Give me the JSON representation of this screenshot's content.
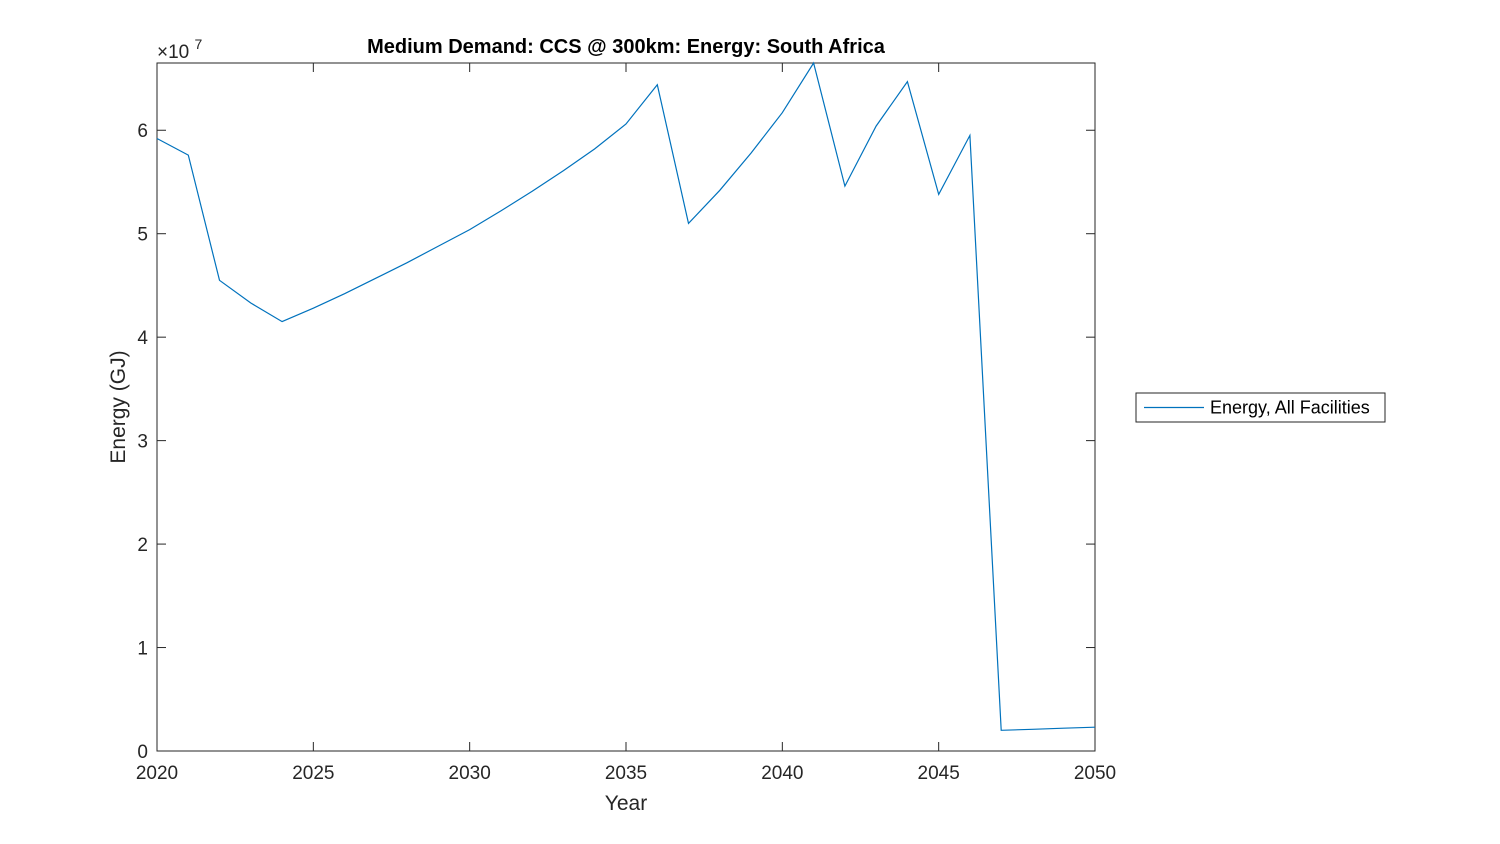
{
  "chart_data": {
    "type": "line",
    "title": "Medium Demand: CCS @ 300km: Energy: South Africa",
    "xlabel": "Year",
    "ylabel": "Energy (GJ)",
    "y_exponent_label": "×10",
    "y_exponent_power": "7",
    "xlim": [
      2020,
      2050
    ],
    "ylim": [
      0,
      6.65
    ],
    "x_ticks": [
      2020,
      2025,
      2030,
      2035,
      2040,
      2045,
      2050
    ],
    "x_tick_labels": [
      "2020",
      "2025",
      "2030",
      "2035",
      "2040",
      "2045",
      "2050"
    ],
    "y_ticks": [
      0,
      1,
      2,
      3,
      4,
      5,
      6
    ],
    "y_tick_labels": [
      "0",
      "1",
      "2",
      "3",
      "4",
      "5",
      "6"
    ],
    "grid": false,
    "legend_position": "outside-right",
    "series": [
      {
        "name": "Energy, All Facilities",
        "color": "#0072BD",
        "x": [
          2020,
          2021,
          2022,
          2023,
          2024,
          2025,
          2026,
          2027,
          2028,
          2029,
          2030,
          2031,
          2032,
          2033,
          2034,
          2035,
          2036,
          2037,
          2038,
          2039,
          2040,
          2041,
          2042,
          2043,
          2044,
          2045,
          2046,
          2047,
          2048,
          2049,
          2050
        ],
        "values": [
          5.92,
          5.76,
          4.55,
          4.33,
          4.15,
          4.28,
          4.42,
          4.57,
          4.72,
          4.88,
          5.04,
          5.22,
          5.41,
          5.61,
          5.82,
          6.06,
          6.44,
          5.1,
          5.42,
          5.78,
          6.17,
          6.65,
          5.46,
          6.04,
          6.47,
          5.38,
          5.95,
          0.2,
          0.21,
          0.22,
          0.23
        ]
      }
    ]
  }
}
